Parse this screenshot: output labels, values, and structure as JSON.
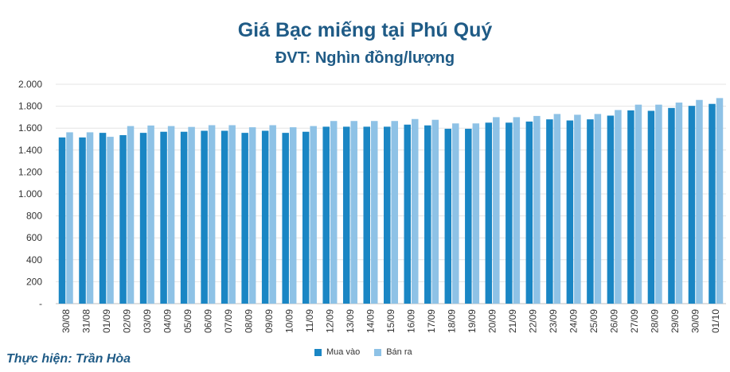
{
  "chart_data": {
    "type": "bar",
    "title": "Giá Bạc miếng tại Phú Quý",
    "subtitle": "ĐVT: Nghìn đồng/lượng",
    "categories": [
      "30/08",
      "31/08",
      "01/09",
      "02/09",
      "03/09",
      "04/09",
      "05/09",
      "06/09",
      "07/09",
      "08/09",
      "09/09",
      "10/09",
      "11/09",
      "12/09",
      "13/09",
      "14/09",
      "15/09",
      "16/09",
      "17/09",
      "18/09",
      "19/09",
      "20/09",
      "21/09",
      "22/09",
      "23/09",
      "24/09",
      "25/09",
      "26/09",
      "27/09",
      "28/09",
      "29/09",
      "30/09",
      "01/10"
    ],
    "series": [
      {
        "name": "Mua vào",
        "color": "#1a86c4",
        "values": [
          1515,
          1515,
          1557,
          1536,
          1557,
          1567,
          1567,
          1576,
          1576,
          1557,
          1576,
          1557,
          1567,
          1613,
          1613,
          1613,
          1613,
          1632,
          1625,
          1594,
          1594,
          1650,
          1650,
          1660,
          1680,
          1670,
          1680,
          1714,
          1762,
          1758,
          1784,
          1803,
          1821
        ]
      },
      {
        "name": "Bán ra",
        "color": "#8ec2e6",
        "values": [
          1562,
          1562,
          1521,
          1619,
          1624,
          1619,
          1611,
          1627,
          1627,
          1608,
          1627,
          1608,
          1619,
          1665,
          1665,
          1665,
          1665,
          1683,
          1676,
          1643,
          1643,
          1700,
          1700,
          1711,
          1729,
          1722,
          1729,
          1765,
          1814,
          1814,
          1833,
          1857,
          1874
        ]
      }
    ],
    "ylim": [
      0,
      2000
    ],
    "yticks": [
      0,
      200,
      400,
      600,
      800,
      1000,
      1200,
      1400,
      1600,
      1800,
      2000
    ],
    "ytick_labels": [
      "-",
      "200",
      "400",
      "600",
      "800",
      "1.000",
      "1.200",
      "1.400",
      "1.600",
      "1.800",
      "2.000"
    ],
    "grid": true,
    "legend_position": "bottom"
  },
  "credit": "Thực hiện: Trần Hòa"
}
